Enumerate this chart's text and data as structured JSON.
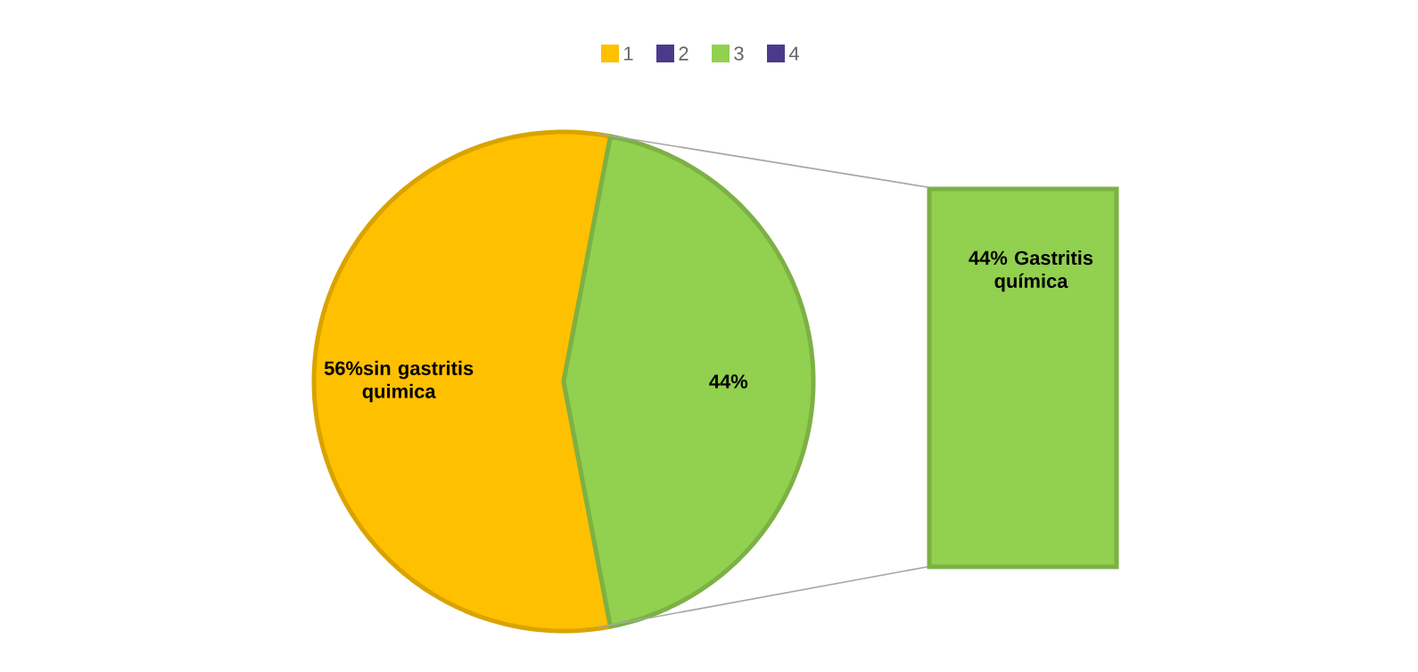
{
  "chart_data": {
    "type": "pie",
    "categories": [
      "1",
      "2",
      "3",
      "4"
    ],
    "values": [
      56,
      0,
      44,
      0
    ],
    "colors": [
      "#ffc000",
      "#4b3a8c",
      "#92d050",
      "#4b3a8c"
    ],
    "value_labels": [
      "56%sin gastritis quimica",
      null,
      "44%",
      null
    ],
    "annotations": [
      "44% Gastritis química"
    ],
    "legend": "top"
  }
}
